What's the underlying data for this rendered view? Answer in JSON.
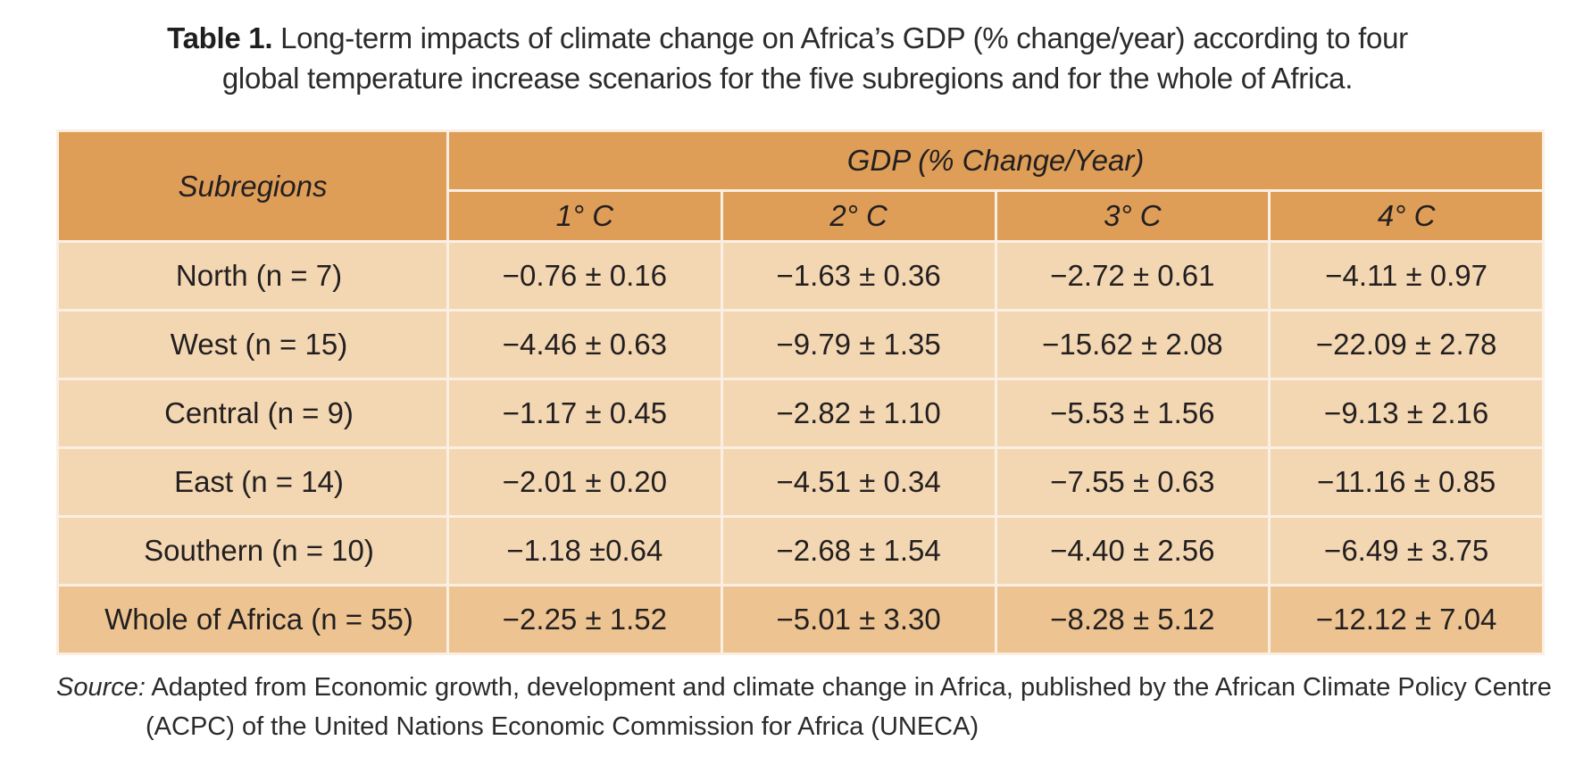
{
  "caption": {
    "label": "Table 1.",
    "line1": " Long-term impacts of climate change on Africa’s GDP (% change/year) according to four",
    "line2": "global temperature increase scenarios for the five subregions and for the whole of Africa."
  },
  "table": {
    "row_header_label": "Subregions",
    "group_header_label": "GDP (% Change/Year)",
    "columns": [
      "1° C",
      "2° C",
      "3° C",
      "4° C"
    ],
    "rows": [
      {
        "region": "North (n = 7)",
        "values": [
          "−0.76 ± 0.16",
          "−1.63 ± 0.36",
          "−2.72 ± 0.61",
          "−4.11 ± 0.97"
        ]
      },
      {
        "region": "West (n = 15)",
        "values": [
          "−4.46 ± 0.63",
          "−9.79 ± 1.35",
          "−15.62 ± 2.08",
          "−22.09 ± 2.78"
        ]
      },
      {
        "region": "Central (n = 9)",
        "values": [
          "−1.17 ± 0.45",
          "−2.82 ± 1.10",
          "−5.53 ± 1.56",
          "−9.13 ± 2.16"
        ]
      },
      {
        "region": "East (n = 14)",
        "values": [
          "−2.01 ± 0.20",
          "−4.51 ± 0.34",
          "−7.55 ± 0.63",
          "−11.16 ± 0.85"
        ]
      },
      {
        "region": "Southern (n = 10)",
        "values": [
          "−1.18 ±0.64",
          "−2.68 ± 1.54",
          "−4.40 ± 2.56",
          "−6.49 ± 3.75"
        ]
      },
      {
        "region": "Whole of Africa (n = 55)",
        "values": [
          "−2.25 ± 1.52",
          "−5.01 ± 3.30",
          "−8.28 ± 5.12",
          "−12.12 ± 7.04"
        ]
      }
    ]
  },
  "source": {
    "label": "Source:",
    "line1": " Adapted from Economic growth, development and climate change in Africa, published by the African Climate Policy Centre",
    "line2": "(ACPC) of the United Nations Economic Commission for Africa (UNECA)"
  },
  "colors": {
    "header_bg": "#de9e57",
    "row_bg": "#f3d7b2",
    "total_row_bg": "#edc491",
    "grid_line": "#fbefe3"
  }
}
